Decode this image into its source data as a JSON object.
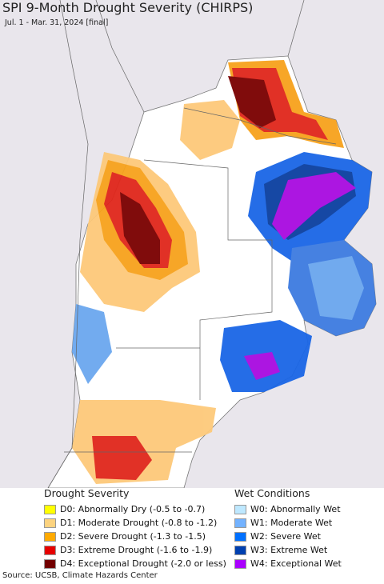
{
  "title": "SPI 9-Month Drought Severity (CHIRPS)",
  "subtitle": "Jul. 1 - Mar. 31, 2024 [final]",
  "legend": [
    {
      "title": "Drought Severity",
      "items": [
        {
          "label": "D0: Abnormally Dry (-0.5 to -0.7)",
          "color": "#ffff00"
        },
        {
          "label": "D1: Moderate Drought (-0.8 to -1.2)",
          "color": "#fcd37f"
        },
        {
          "label": "D2: Severe Drought (-1.3 to -1.5)",
          "color": "#ffaa00"
        },
        {
          "label": "D3: Extreme Drought (-1.6 to -1.9)",
          "color": "#e60000"
        },
        {
          "label": "D4: Exceptional Drought (-2.0 or less)",
          "color": "#730000"
        }
      ]
    },
    {
      "title": "Wet Conditions",
      "items": [
        {
          "label": "W0: Abnormally Wet",
          "color": "#bee8ff"
        },
        {
          "label": "W1: Moderate Wet",
          "color": "#73b2ff"
        },
        {
          "label": "W2: Severe Wet",
          "color": "#0070ff"
        },
        {
          "label": "W3: Extreme Wet",
          "color": "#0040b0"
        },
        {
          "label": "W4: Exceptional Wet",
          "color": "#aa00ff"
        }
      ]
    }
  ],
  "source": "Source: UCSB, Climate Hazards Center"
}
